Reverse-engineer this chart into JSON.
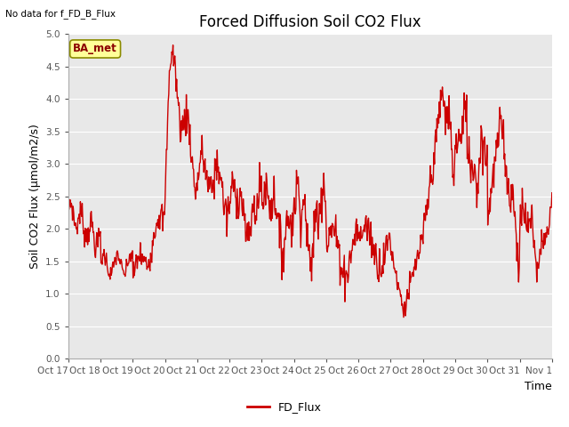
{
  "title": "Forced Diffusion Soil CO2 Flux",
  "xlabel": "Time",
  "ylabel": "Soil CO2 Flux (μmol/m2/s)",
  "no_data_text": "No data for f_FD_B_Flux",
  "legend_label": "FD_Flux",
  "ba_met_label": "BA_met",
  "ylim": [
    0.0,
    5.0
  ],
  "yticks": [
    0.0,
    0.5,
    1.0,
    1.5,
    2.0,
    2.5,
    3.0,
    3.5,
    4.0,
    4.5,
    5.0
  ],
  "xtick_labels": [
    "Oct 17",
    "Oct 18",
    "Oct 19",
    "Oct 20",
    "Oct 21",
    "Oct 22",
    "Oct 23",
    "Oct 24",
    "Oct 25",
    "Oct 26",
    "Oct 27",
    "Oct 28",
    "Oct 29",
    "Oct 30",
    "Oct 31",
    "Nov 1"
  ],
  "line_color": "#cc0000",
  "line_width": 1.0,
  "bg_color": "#e8e8e8",
  "grid_color": "#ffffff",
  "ba_met_bg": "#ffff99",
  "ba_met_border": "#999900",
  "title_fontsize": 12,
  "axis_label_fontsize": 9,
  "tick_fontsize": 7.5
}
